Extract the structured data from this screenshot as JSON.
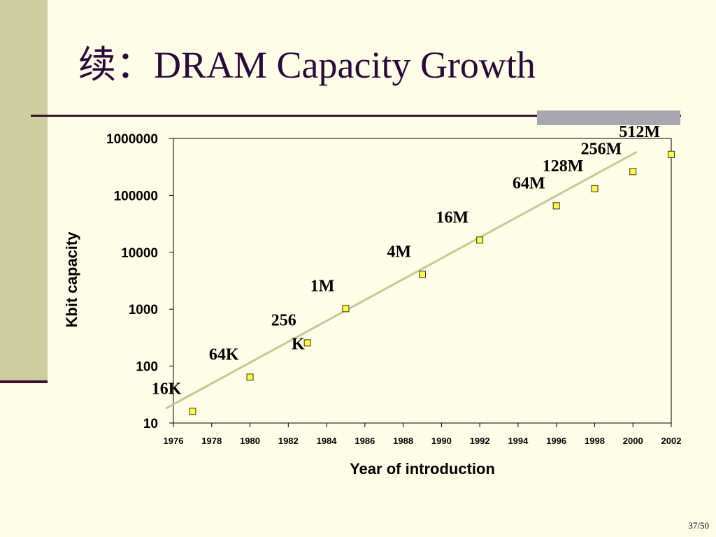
{
  "slide": {
    "title": "续：DRAM Capacity Growth",
    "page_number": "37/50"
  },
  "colors": {
    "background": "#fdfde8",
    "left_bar": "#cdcda0",
    "rule": "#3b1030",
    "title": "#2b0a3a",
    "marker_fill": "#ffff33",
    "trend_line": "#c8c896"
  },
  "chart_data": {
    "type": "scatter",
    "title": "",
    "xlabel": "Year of introduction",
    "ylabel": "Kbit capacity",
    "x_scale": "linear",
    "y_scale": "log",
    "xlim": [
      1976,
      2002
    ],
    "ylim": [
      10,
      1000000
    ],
    "x_ticks": [
      "1976",
      "1978",
      "1980",
      "1982",
      "1984",
      "1986",
      "1988",
      "1990",
      "1992",
      "1994",
      "1996",
      "1998",
      "2000",
      "2002"
    ],
    "y_ticks": [
      "10",
      "100",
      "1000",
      "10000",
      "100000",
      "1000000"
    ],
    "grid": false,
    "points": [
      {
        "x": 1977,
        "y": 16,
        "label": "16K"
      },
      {
        "x": 1980,
        "y": 64,
        "label": "64K"
      },
      {
        "x": 1983,
        "y": 256,
        "label": "256\nK"
      },
      {
        "x": 1985,
        "y": 1024,
        "label": "1M"
      },
      {
        "x": 1989,
        "y": 4096,
        "label": "4M"
      },
      {
        "x": 1992,
        "y": 16384,
        "label": "16M"
      },
      {
        "x": 1996,
        "y": 65536,
        "label": "64M"
      },
      {
        "x": 1998,
        "y": 131072,
        "label": "128M"
      },
      {
        "x": 2000,
        "y": 262144,
        "label": "256M"
      },
      {
        "x": 2002,
        "y": 524288,
        "label": "512M"
      }
    ],
    "trend_line": {
      "from": {
        "x": 1975.6,
        "y": 18
      },
      "to": {
        "x": 2000.2,
        "y": 580000
      }
    }
  }
}
